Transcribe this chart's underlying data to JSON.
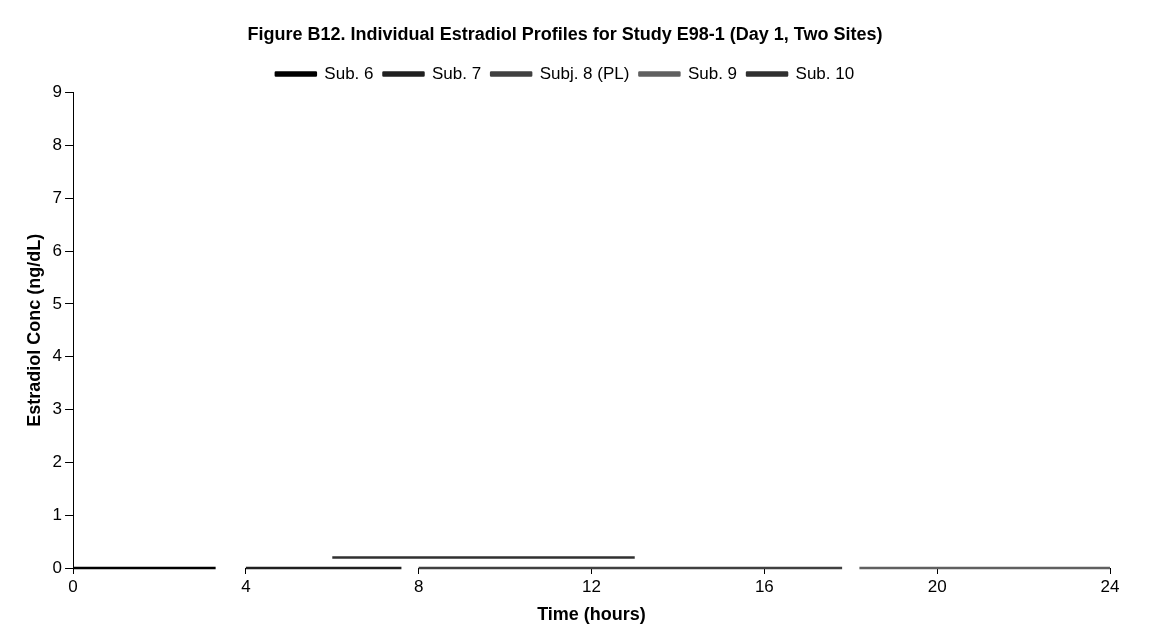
{
  "chart_data": {
    "type": "line",
    "title": "Figure B12. Individual Estradiol Profiles for Study E98-1 (Day 1, Two Sites)",
    "xlabel": "Time (hours)",
    "ylabel": "Estradiol Conc (ng/dL)",
    "series": [
      {
        "name": "Sub. 6",
        "color": "#000000",
        "x": [
          0,
          1,
          2,
          3.3
        ],
        "values": [
          0,
          0,
          0,
          0
        ]
      },
      {
        "name": "Sub. 7",
        "color": "#202020",
        "x": [
          4,
          6,
          7.6
        ],
        "values": [
          0,
          0,
          0
        ]
      },
      {
        "name": "Subj. 8 (PL)",
        "color": "#404040",
        "x": [
          8,
          12,
          17.8
        ],
        "values": [
          0,
          0,
          0
        ]
      },
      {
        "name": "Sub. 9",
        "color": "#606060",
        "x": [
          18.2,
          20,
          24
        ],
        "values": [
          0,
          0,
          0
        ]
      },
      {
        "name": "Sub. 10",
        "color": "#303030",
        "x": [
          6,
          8,
          10,
          12,
          13
        ],
        "values": [
          0.2,
          0.2,
          0.2,
          0.2,
          0.2
        ]
      }
    ],
    "xlim": [
      0,
      24
    ],
    "xticks": [
      0,
      4,
      8,
      12,
      16,
      20,
      24
    ],
    "ylim": [
      0,
      9
    ],
    "yticks": [
      0,
      1,
      2,
      3,
      4,
      5,
      6,
      7,
      8,
      9
    ],
    "grid": false,
    "legend": "top",
    "marker": "none"
  }
}
